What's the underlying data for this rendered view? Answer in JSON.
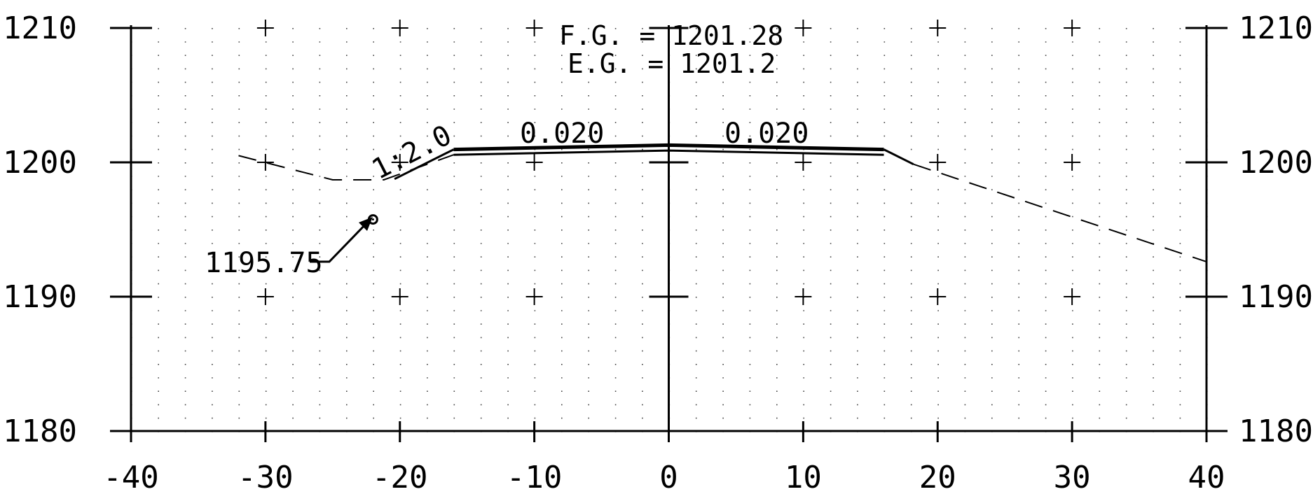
{
  "axes": {
    "x_ticks": [
      {
        "value": -40,
        "label": "-40"
      },
      {
        "value": -30,
        "label": "-30"
      },
      {
        "value": -20,
        "label": "-20"
      },
      {
        "value": -10,
        "label": "-10"
      },
      {
        "value": 0,
        "label": "0"
      },
      {
        "value": 10,
        "label": "10"
      },
      {
        "value": 20,
        "label": "20"
      },
      {
        "value": 30,
        "label": "30"
      },
      {
        "value": 40,
        "label": "40"
      }
    ],
    "y_ticks": [
      {
        "value": 1180,
        "label": "1180"
      },
      {
        "value": 1190,
        "label": "1190"
      },
      {
        "value": 1200,
        "label": "1200"
      },
      {
        "value": 1210,
        "label": "1210"
      }
    ],
    "xlim": [
      -40,
      40
    ],
    "ylim": [
      1180,
      1210
    ],
    "grid": "dotted"
  },
  "header": {
    "fg_line": "F.G. = 1201.28",
    "eg_line": "E.G. = 1201.2"
  },
  "annotations": {
    "slope_left": "1:2.0",
    "cross_slope_left": "0.020",
    "cross_slope_right": "0.020",
    "elevation_callout": "1195.75"
  },
  "chart_data": {
    "type": "line",
    "series": [
      {
        "values": [
          [
            -16,
            1200.96
          ],
          [
            0,
            1201.28
          ],
          [
            16,
            1200.96
          ]
        ]
      },
      {
        "values": [
          [
            -16,
            1200.56
          ],
          [
            0,
            1200.88
          ],
          [
            16,
            1200.56
          ]
        ]
      },
      {
        "values": [
          [
            -16,
            1200.96
          ],
          [
            -20.4,
            1198.76
          ]
        ]
      },
      {
        "values": [
          [
            16,
            1200.96
          ],
          [
            18.2,
            1199.86
          ]
        ]
      },
      {
        "values": [
          [
            -32,
            1200.5
          ],
          [
            -25,
            1198.7
          ],
          [
            -21.2,
            1198.7
          ],
          [
            -16,
            1200.56
          ]
        ]
      },
      {
        "values": [
          [
            18.2,
            1199.86
          ],
          [
            40,
            1192.6
          ]
        ]
      }
    ],
    "points": [
      {
        "x": -22,
        "y": 1195.75,
        "label": "1195.75"
      }
    ]
  }
}
